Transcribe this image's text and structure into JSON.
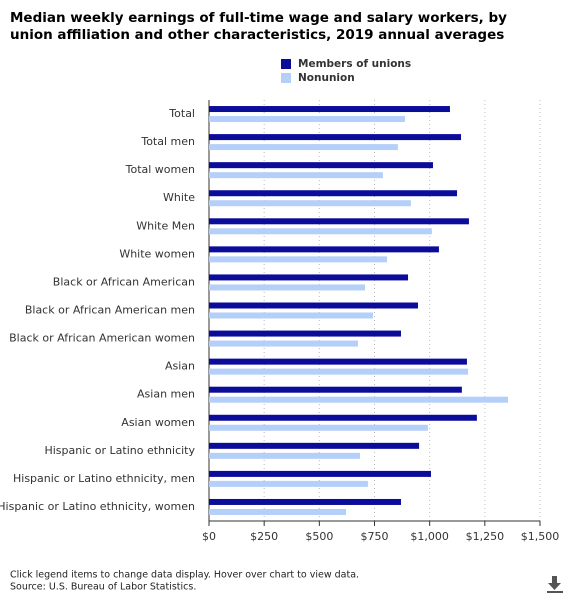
{
  "chart_data": {
    "type": "bar",
    "orientation": "horizontal",
    "title": "Median weekly earnings of full-time wage and salary workers, by union affiliation and other characteristics, 2019 annual averages",
    "categories": [
      "Total",
      "Total men",
      "Total women",
      "White",
      "White Men",
      "White women",
      "Black or African American",
      "Black or African American men",
      "Black or African American women",
      "Asian",
      "Asian men",
      "Asian women",
      "Hispanic or Latino ethnicity",
      "Hispanic or Latino ethnicity, men",
      "Hispanic or Latino ethnicity, women"
    ],
    "series": [
      {
        "name": "Members of unions",
        "color": "#0c0c9a",
        "values": [
          1092,
          1142,
          1015,
          1124,
          1178,
          1042,
          902,
          947,
          870,
          1169,
          1146,
          1214,
          952,
          1006,
          870
        ]
      },
      {
        "name": "Nonunion",
        "color": "#b3cffa",
        "values": [
          888,
          856,
          788,
          915,
          1010,
          807,
          707,
          743,
          675,
          1174,
          1355,
          992,
          684,
          720,
          621
        ]
      }
    ],
    "xlim": [
      0,
      1500
    ],
    "xticks": [
      {
        "value": 0,
        "label": "$0"
      },
      {
        "value": 250,
        "label": "$250"
      },
      {
        "value": 500,
        "label": "$500"
      },
      {
        "value": 750,
        "label": "$750"
      },
      {
        "value": 1000,
        "label": "$1,000"
      },
      {
        "value": 1250,
        "label": "$1,250"
      },
      {
        "value": 1500,
        "label": "$1,500"
      }
    ],
    "grid": true,
    "notes": [
      "Click legend items to change data display. Hover over chart to view data.",
      "Source: U.S. Bureau of Labor Statistics."
    ]
  }
}
